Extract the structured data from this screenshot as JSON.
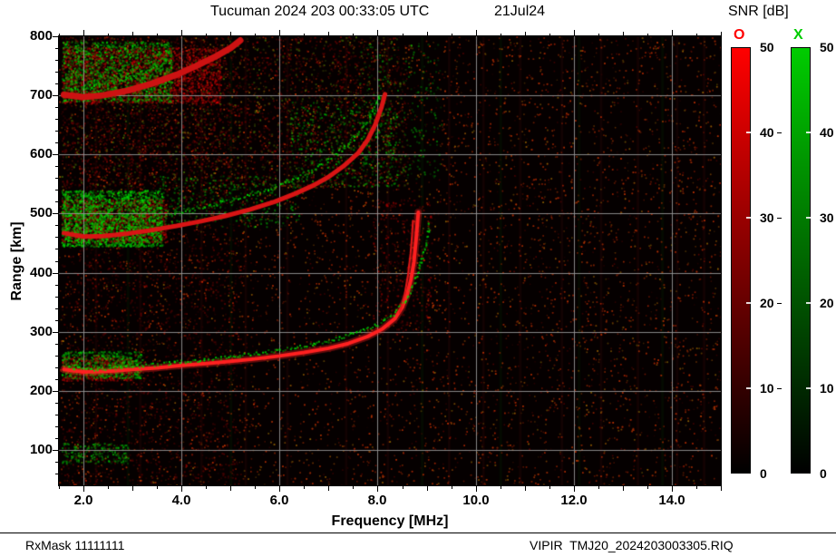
{
  "header": {
    "title": "Tucuman 2024 203 00:33:05 UTC",
    "date": "21Jul24"
  },
  "colorbar": {
    "title": "SNR [dB]",
    "min": 0,
    "max": 50,
    "bars": [
      {
        "label": "O",
        "color": "#ff0000",
        "ticks": [
          0,
          10,
          20,
          30,
          40,
          50
        ]
      },
      {
        "label": "X",
        "color": "#00cc00",
        "ticks": [
          0,
          10,
          20,
          30,
          40,
          50
        ]
      }
    ]
  },
  "axes": {
    "x_label": "Frequency [MHz]",
    "y_label": "Range [km]",
    "x_ticks": [
      {
        "v": 2,
        "label": "2.0"
      },
      {
        "v": 4,
        "label": "4.0"
      },
      {
        "v": 6,
        "label": "6.0"
      },
      {
        "v": 8,
        "label": "8.0"
      },
      {
        "v": 10,
        "label": "10.0"
      },
      {
        "v": 12,
        "label": "12.0"
      },
      {
        "v": 14,
        "label": "14.0"
      }
    ],
    "y_ticks": [
      {
        "v": 100,
        "label": "100"
      },
      {
        "v": 200,
        "label": "200"
      },
      {
        "v": 300,
        "label": "300"
      },
      {
        "v": 400,
        "label": "400"
      },
      {
        "v": 500,
        "label": "500"
      },
      {
        "v": 600,
        "label": "600"
      },
      {
        "v": 700,
        "label": "700"
      },
      {
        "v": 800,
        "label": "800"
      }
    ]
  },
  "footer": {
    "left": "RxMask 11111111",
    "right": "VIPIR  TMJ20_2024203003305.RIQ"
  },
  "chart_data": {
    "type": "heatmap",
    "title": "Tucuman 2024 203 00:33:05 UTC",
    "xlabel": "Frequency [MHz]",
    "ylabel": "Range [km]",
    "xlim": [
      1.5,
      15.0
    ],
    "ylim": [
      40,
      800
    ],
    "grid": true,
    "background": "#000000",
    "colorbar": {
      "label": "SNR [dB]",
      "range": [
        0,
        50
      ],
      "o_mode_color": "#ff0000",
      "x_mode_color": "#00cc00"
    },
    "traces": [
      {
        "mode": "O",
        "hop": 1,
        "style": "line",
        "color": "#ff2020",
        "width": 4,
        "glow": true,
        "points": [
          [
            1.6,
            236
          ],
          [
            2.0,
            232
          ],
          [
            2.5,
            233
          ],
          [
            3.0,
            236
          ],
          [
            3.5,
            239
          ],
          [
            4.0,
            243
          ],
          [
            4.5,
            246
          ],
          [
            5.0,
            250
          ],
          [
            5.5,
            254
          ],
          [
            6.0,
            259
          ],
          [
            6.5,
            265
          ],
          [
            7.0,
            272
          ],
          [
            7.4,
            280
          ],
          [
            7.8,
            292
          ],
          [
            8.1,
            305
          ],
          [
            8.35,
            322
          ],
          [
            8.5,
            341
          ],
          [
            8.6,
            362
          ],
          [
            8.68,
            388
          ],
          [
            8.74,
            418
          ],
          [
            8.78,
            452
          ],
          [
            8.81,
            482
          ],
          [
            8.83,
            502
          ]
        ]
      },
      {
        "mode": "O",
        "hop": 1,
        "style": "line",
        "color": "#e01818",
        "width": 2,
        "glow": false,
        "points": [
          [
            8.45,
            332
          ],
          [
            8.55,
            362
          ],
          [
            8.62,
            397
          ],
          [
            8.67,
            432
          ],
          [
            8.7,
            462
          ],
          [
            8.72,
            488
          ]
        ]
      },
      {
        "mode": "X",
        "hop": 1,
        "style": "speckle",
        "color": "#00e000",
        "size": 2,
        "points": [
          [
            1.7,
            241
          ],
          [
            2.2,
            238
          ],
          [
            2.8,
            241
          ],
          [
            3.4,
            245
          ],
          [
            4.0,
            250
          ],
          [
            4.6,
            255
          ],
          [
            5.2,
            261
          ],
          [
            5.8,
            268
          ],
          [
            6.4,
            276
          ],
          [
            7.0,
            286
          ],
          [
            7.5,
            297
          ],
          [
            8.0,
            314
          ],
          [
            8.3,
            331
          ],
          [
            8.55,
            353
          ],
          [
            8.72,
            379
          ],
          [
            8.85,
            410
          ],
          [
            8.95,
            442
          ],
          [
            9.02,
            468
          ],
          [
            9.05,
            490
          ]
        ]
      },
      {
        "mode": "O",
        "hop": 2,
        "style": "line",
        "color": "#d81414",
        "width": 5,
        "glow": false,
        "points": [
          [
            1.6,
            467
          ],
          [
            2.0,
            461
          ],
          [
            2.4,
            462
          ],
          [
            2.9,
            466
          ],
          [
            3.4,
            472
          ],
          [
            3.9,
            479
          ],
          [
            4.4,
            487
          ],
          [
            4.9,
            496
          ],
          [
            5.4,
            507
          ],
          [
            5.9,
            520
          ],
          [
            6.3,
            533
          ],
          [
            6.7,
            548
          ],
          [
            7.0,
            562
          ],
          [
            7.3,
            580
          ],
          [
            7.6,
            602
          ],
          [
            7.8,
            625
          ],
          [
            7.95,
            650
          ],
          [
            8.08,
            680
          ],
          [
            8.15,
            702
          ]
        ]
      },
      {
        "mode": "X",
        "hop": 2,
        "style": "speckle",
        "color": "#00d000",
        "size": 2,
        "points": [
          [
            3.6,
            498
          ],
          [
            4.2,
            508
          ],
          [
            4.8,
            520
          ],
          [
            5.4,
            533
          ],
          [
            5.9,
            547
          ],
          [
            6.3,
            561
          ],
          [
            6.7,
            577
          ],
          [
            7.0,
            593
          ],
          [
            7.3,
            613
          ],
          [
            7.6,
            637
          ],
          [
            7.8,
            661
          ],
          [
            7.95,
            686
          ],
          [
            8.05,
            706
          ]
        ]
      },
      {
        "mode": "O",
        "hop": 3,
        "style": "line",
        "color": "#cc1212",
        "width": 7,
        "glow": false,
        "points": [
          [
            1.6,
            701
          ],
          [
            2.0,
            697
          ],
          [
            2.4,
            700
          ],
          [
            2.9,
            708
          ],
          [
            3.4,
            720
          ],
          [
            3.9,
            735
          ],
          [
            4.3,
            750
          ],
          [
            4.7,
            766
          ],
          [
            5.0,
            780
          ],
          [
            5.2,
            793
          ]
        ]
      },
      {
        "mode": "X",
        "hop": 3,
        "style": "speckle",
        "color": "#00c800",
        "size": 2,
        "points": [
          [
            1.7,
            712
          ],
          [
            2.1,
            716
          ],
          [
            2.5,
            723
          ],
          [
            3.0,
            734
          ],
          [
            3.4,
            746
          ],
          [
            3.8,
            759
          ]
        ]
      }
    ],
    "noise": {
      "red_patches": [
        {
          "f": [
            1.55,
            3.7
          ],
          "r": [
            452,
            525
          ],
          "n": 1600,
          "a": 0.5
        },
        {
          "f": [
            1.55,
            4.8
          ],
          "r": [
            688,
            782
          ],
          "n": 2200,
          "a": 0.55
        },
        {
          "f": [
            7.9,
            9.1
          ],
          "r": [
            295,
            525
          ],
          "n": 350,
          "a": 0.4
        },
        {
          "f": [
            1.55,
            3.0
          ],
          "r": [
            218,
            258
          ],
          "n": 600,
          "a": 0.5
        },
        {
          "f": [
            1.55,
            8.6
          ],
          "r": [
            545,
            800
          ],
          "n": 3000,
          "a": 0.28
        },
        {
          "f": [
            1.55,
            5.2
          ],
          "r": [
            42,
            800
          ],
          "n": 2600,
          "a": 0.22
        }
      ],
      "green_patches": [
        {
          "f": [
            1.55,
            3.6
          ],
          "r": [
            445,
            540
          ],
          "n": 2200,
          "a": 0.7
        },
        {
          "f": [
            1.55,
            3.8
          ],
          "r": [
            690,
            792
          ],
          "n": 1500,
          "a": 0.65
        },
        {
          "f": [
            1.55,
            3.2
          ],
          "r": [
            222,
            268
          ],
          "n": 700,
          "a": 0.55
        },
        {
          "f": [
            1.55,
            2.9
          ],
          "r": [
            78,
            112
          ],
          "n": 230,
          "a": 0.5
        },
        {
          "f": [
            6.2,
            8.4
          ],
          "r": [
            545,
            690
          ],
          "n": 430,
          "a": 0.5
        },
        {
          "f": [
            3.5,
            6.4
          ],
          "r": [
            478,
            565
          ],
          "n": 380,
          "a": 0.45
        },
        {
          "f": [
            7.6,
            9.3
          ],
          "r": [
            560,
            790
          ],
          "n": 330,
          "a": 0.4
        },
        {
          "f": [
            1.55,
            8.6
          ],
          "r": [
            545,
            800
          ],
          "n": 700,
          "a": 0.3
        }
      ],
      "stripes_red": [
        2.25,
        3.15,
        4.4,
        5.3,
        6.15,
        7.35,
        8.2,
        9.45,
        10.15,
        10.9,
        11.75,
        12.55,
        13.3,
        14.1,
        14.65
      ],
      "stripes_green": [
        2.9,
        5.0,
        8.9,
        10.5,
        12.1,
        13.8
      ]
    }
  }
}
